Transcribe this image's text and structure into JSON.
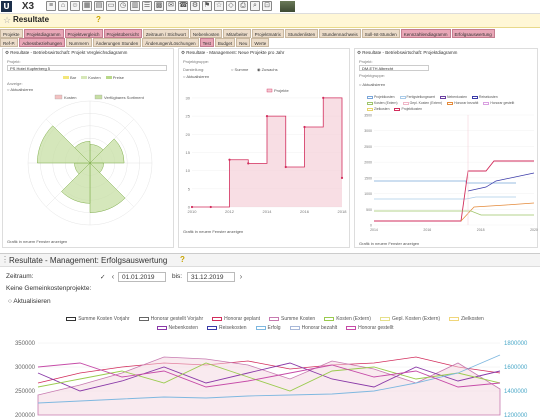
{
  "app": {
    "logo_u": "U",
    "logo_text": "X3",
    "title": "Resultate"
  },
  "tabs_row1": [
    {
      "label": "Projekte",
      "active": false
    },
    {
      "label": "Projektdiagramm",
      "active": true
    },
    {
      "label": "Projektvergleich",
      "active": true
    },
    {
      "label": "Projektübersicht",
      "active": true
    },
    {
      "label": "Zeitraum / Stichwort",
      "active": false
    },
    {
      "label": "Nebenkosten",
      "active": false
    },
    {
      "label": "Mitarbeiter",
      "active": false
    },
    {
      "label": "Projektmatrix",
      "active": false
    },
    {
      "label": "Stundenlisten",
      "active": false
    },
    {
      "label": "Stundennachweis",
      "active": false
    },
    {
      "label": "Soll-Ist-Stunden",
      "active": false
    },
    {
      "label": "Kennzahlendiagramm",
      "active": true
    },
    {
      "label": "Erfolgsauswertung",
      "active": true
    }
  ],
  "tabs_row2": [
    {
      "label": "Ref-P.",
      "active": false
    },
    {
      "label": "Adressbeziehungen",
      "active": true
    },
    {
      "label": "Nummern",
      "active": false
    },
    {
      "label": "Änderungen Stunden",
      "active": false
    },
    {
      "label": "Änderungen/Löschungen",
      "active": false
    },
    {
      "label": "Test",
      "active": true
    },
    {
      "label": "Budget",
      "active": false
    },
    {
      "label": "Neu",
      "active": false
    },
    {
      "label": "Werte",
      "active": false
    }
  ],
  "panel1": {
    "title": "Resultate - Betriebswirtschaft: Projekt Vergleichsdiagramm",
    "project_label": "Projekt:",
    "project_value": "PS Hotel Kupferberg 5",
    "legend": [
      "Bar",
      "Kosten",
      "Preise"
    ],
    "anzeige_label": "Anzeige:",
    "refresh_label": "Aktualisieren",
    "link": "Grafik in neuem Fenster anzeigen"
  },
  "panel2": {
    "title": "Resultate - Management: Neue Projekte pro Jahr",
    "prop_label": "Projektgruppe:",
    "darst_label": "Darstellung:",
    "opt_sum": "Summe",
    "opt_zuw": "Zuwachs",
    "refresh_label": "Aktualisieren",
    "link": "Grafik in neuem Fenster anzeigen"
  },
  "panel3": {
    "title": "Resultate - Betriebswirtschaft: Projektdiagramm",
    "project_label": "Projekt:",
    "project_value": "DM-ETH Albrecht",
    "group_label": "Projektgruppe:",
    "refresh_label": "Aktualisieren",
    "link": "Grafik in neuem Fenster anzeigen"
  },
  "bottom": {
    "title": "Resultate - Management: Erfolgsauswertung",
    "zeitraum_label": "Zeitraum:",
    "date_from": "01.01.2019",
    "bis_label": "bis:",
    "date_to": "31.12.2019",
    "keine_label": "Keine Gemeinkostenprojekte:",
    "refresh_label": "Aktualisieren"
  },
  "colors": {
    "accent": "#d22d5c",
    "tab_active": "#e9a7b7",
    "tab": "#ecdcc9",
    "title_bar": "#fff7d6"
  },
  "chart_data": [
    {
      "type": "polar-area",
      "legend": [
        "Kosten",
        "Verfügbares Sortiment"
      ],
      "sectors": [
        {
          "angle_start": 0,
          "angle_end": 45,
          "value": 30
        },
        {
          "angle_start": 45,
          "angle_end": 90,
          "value": 55
        },
        {
          "angle_start": 90,
          "angle_end": 135,
          "value": 22
        },
        {
          "angle_start": 135,
          "angle_end": 180,
          "value": 80
        },
        {
          "angle_start": 180,
          "angle_end": 225,
          "value": 65
        },
        {
          "angle_start": 225,
          "angle_end": 270,
          "value": 25
        },
        {
          "angle_start": 270,
          "angle_end": 315,
          "value": 85
        },
        {
          "angle_start": 315,
          "angle_end": 360,
          "value": 35
        }
      ],
      "max": 100
    },
    {
      "type": "line",
      "series_name": "Projekte",
      "x": [
        2010,
        2011,
        2012,
        2013,
        2014,
        2015,
        2016,
        2017,
        2018
      ],
      "values": [
        0,
        0,
        13,
        12,
        25,
        11,
        22,
        30,
        8
      ],
      "xticks": [
        "2010",
        "2012",
        "2014",
        "2016",
        "2018"
      ],
      "yticks": [
        0,
        5,
        10,
        15,
        20,
        25,
        30
      ],
      "ylim": [
        0,
        33
      ]
    },
    {
      "type": "line",
      "legend": [
        "Projektkosten",
        "Fertigstellungswert",
        "Nebenkosten",
        "Reisekosten",
        "Kosten (Extern)",
        "Gepl. Kosten (Extern)",
        "Honorar bezahlt",
        "Honorar gestellt",
        "Zielkosten",
        "Projektkosten"
      ],
      "xticks": [
        "2014",
        "2016",
        "2018",
        "2020"
      ],
      "yticks": [
        0,
        500,
        1000,
        1500,
        2000,
        2500,
        3000,
        3500
      ]
    },
    {
      "type": "line",
      "legend_row1": [
        "Summe Kosten Vorjahr",
        "Honorar gestellt Vorjahr",
        "Honorar geplant",
        "Summe Kosten",
        "Kosten (Extern)",
        "Gepl. Kosten (Extern)",
        "Zielkosten"
      ],
      "legend_row2": [
        "Nebenkosten",
        "Reisekosten",
        "Erfolg",
        "Honorar bezahlt",
        "Honorar gestellt"
      ],
      "yticks_left": [
        "350000",
        "300000",
        "250000",
        "200000"
      ],
      "yticks_right": [
        "1800000",
        "1600000",
        "1400000",
        "1200000"
      ]
    }
  ]
}
